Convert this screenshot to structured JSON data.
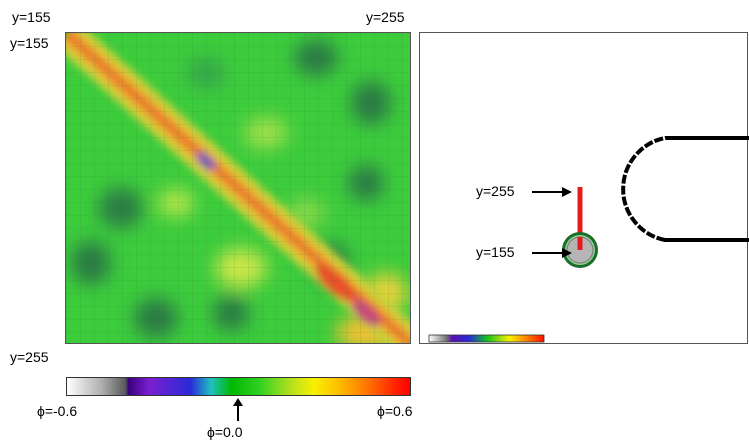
{
  "labels": {
    "heatmap_x_start": "y=155",
    "heatmap_x_end": "y=255",
    "heatmap_y_start": "y=155",
    "heatmap_y_end": "y=255",
    "arrow_top": "y=255",
    "arrow_bottom": "y=155"
  },
  "colorbar": {
    "min_label": "ϕ=-0.6",
    "mid_label": "ϕ=0.0",
    "max_label": "ϕ=0.6",
    "min": -0.6,
    "max": 0.6
  },
  "colors": {
    "diagonal_high": "#e8702a",
    "field_mid": "#33cc33",
    "field_low": "#1f7a4a",
    "marker_red": "#e41a1c",
    "circle_fill": "#b5b5b5",
    "circle_ring": "#1b6e2a"
  }
}
